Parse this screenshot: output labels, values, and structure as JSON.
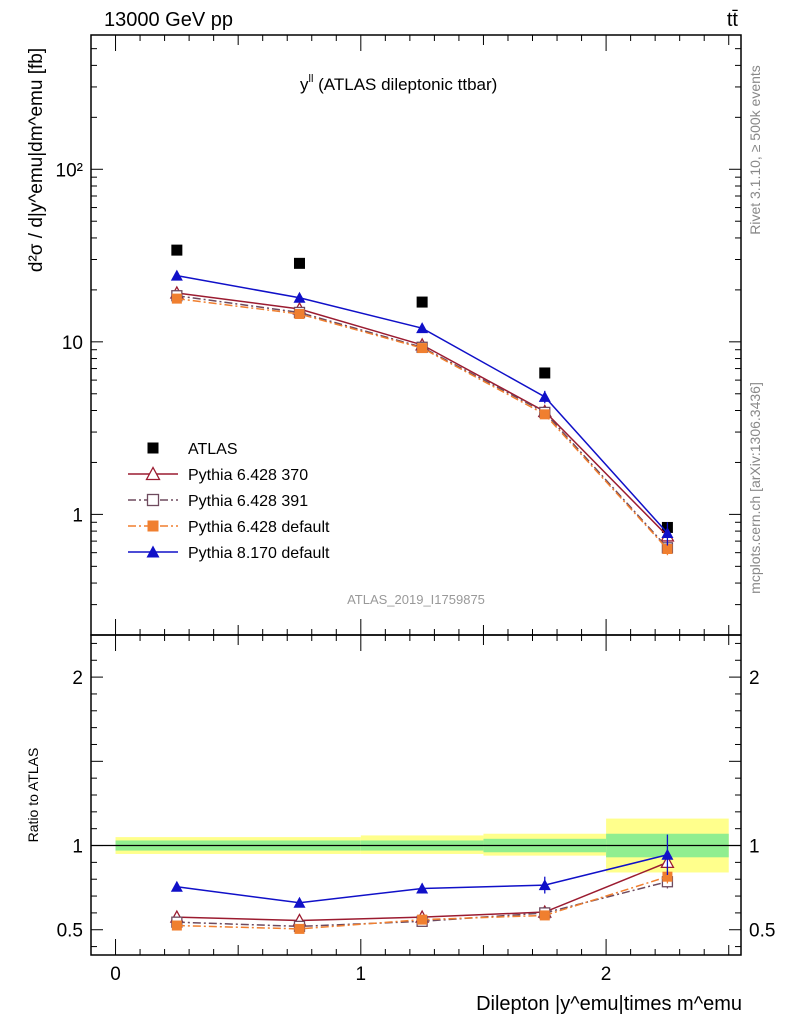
{
  "header": {
    "energy_label": "13000 GeV pp",
    "process_label": "tt̄"
  },
  "side_text": {
    "rivet": "Rivet 3.1.10, ≥ 500k events",
    "mcplots": "mcplots.cern.ch [arXiv:1306.3436]"
  },
  "plot_title": {
    "main": "y",
    "sup": "ll",
    "rest": " (ATLAS dileptonic ttbar)"
  },
  "analysis_id": "ATLAS_2019_I1759875",
  "axes": {
    "ylabel_main": "d²σ / d|y^emu|dm^emu [fb]",
    "ylabel_ratio": "Ratio to ATLAS",
    "xlabel": "Dilepton |y^emu|times m^emu"
  },
  "legend": [
    {
      "label": "ATLAS",
      "color": "#000000",
      "marker": "square-filled"
    },
    {
      "label": "Pythia 6.428 370",
      "color": "#9b1b30",
      "marker": "triangle-open"
    },
    {
      "label": "Pythia 6.428 391",
      "color": "#6e4a5e",
      "marker": "square-open"
    },
    {
      "label": "Pythia 6.428 default",
      "color": "#f07f2f",
      "marker": "square-filled"
    },
    {
      "label": "Pythia 8.170 default",
      "color": "#1010c8",
      "marker": "triangle-filled"
    }
  ],
  "chart_data": [
    {
      "type": "scatter",
      "panel": "main",
      "scale": "log",
      "xlim": [
        -0.1,
        2.55
      ],
      "ylim": [
        0.2,
        600
      ],
      "x_ticks": [
        0,
        1,
        2
      ],
      "y_ticks": [
        1,
        10,
        100
      ],
      "y_tick_labels": [
        "1",
        "10",
        "10²"
      ],
      "x": [
        0.25,
        0.75,
        1.25,
        1.75,
        2.25
      ],
      "series": [
        {
          "name": "ATLAS",
          "values": [
            34,
            28.5,
            17,
            6.6,
            0.84
          ],
          "errors": [
            0.8,
            0.7,
            0.4,
            0.2,
            0.06
          ]
        },
        {
          "name": "Pythia 6.428 370",
          "values": [
            19.2,
            15.5,
            9.6,
            3.95,
            0.75
          ],
          "errors": [
            0.3,
            0.3,
            0.2,
            0.1,
            0.05
          ]
        },
        {
          "name": "Pythia 6.428 391",
          "values": [
            18.5,
            14.8,
            9.3,
            3.9,
            0.64
          ],
          "errors": [
            0.3,
            0.3,
            0.2,
            0.1,
            0.05
          ]
        },
        {
          "name": "Pythia 6.428 default",
          "values": [
            17.8,
            14.5,
            9.2,
            3.8,
            0.63
          ],
          "errors": [
            0.3,
            0.3,
            0.2,
            0.1,
            0.05
          ]
        },
        {
          "name": "Pythia 8.170 default",
          "values": [
            24.2,
            18,
            12,
            4.8,
            0.78
          ],
          "errors": [
            0.4,
            0.4,
            0.3,
            0.4,
            0.12
          ]
        }
      ]
    },
    {
      "type": "scatter",
      "panel": "ratio",
      "scale": "linear",
      "xlim": [
        -0.1,
        2.55
      ],
      "ylim": [
        0.35,
        2.25
      ],
      "x_ticks": [
        0,
        1,
        2
      ],
      "y_ticks": [
        0.5,
        1,
        2
      ],
      "y_tick_labels": [
        "0.5",
        "1",
        "2"
      ],
      "x": [
        0.25,
        0.75,
        1.25,
        1.75,
        2.25
      ],
      "bands": [
        {
          "x0": 0.0,
          "x1": 1.0,
          "inner": [
            0.97,
            1.03
          ],
          "outer": [
            0.95,
            1.05
          ]
        },
        {
          "x0": 1.0,
          "x1": 1.5,
          "inner": [
            0.97,
            1.03
          ],
          "outer": [
            0.95,
            1.06
          ]
        },
        {
          "x0": 1.5,
          "x1": 2.0,
          "inner": [
            0.96,
            1.04
          ],
          "outer": [
            0.94,
            1.07
          ]
        },
        {
          "x0": 2.0,
          "x1": 2.5,
          "inner": [
            0.93,
            1.07
          ],
          "outer": [
            0.84,
            1.16
          ]
        }
      ],
      "series": [
        {
          "name": "Pythia 6.428 370",
          "values": [
            0.575,
            0.555,
            0.575,
            0.605,
            0.9
          ],
          "errors": [
            0.01,
            0.01,
            0.01,
            0.015,
            0.04
          ]
        },
        {
          "name": "Pythia 6.428 391",
          "values": [
            0.545,
            0.52,
            0.55,
            0.6,
            0.785
          ],
          "errors": [
            0.01,
            0.01,
            0.01,
            0.015,
            0.04
          ]
        },
        {
          "name": "Pythia 6.428 default",
          "values": [
            0.525,
            0.505,
            0.56,
            0.585,
            0.815
          ],
          "errors": [
            0.01,
            0.01,
            0.01,
            0.015,
            0.04
          ]
        },
        {
          "name": "Pythia 8.170 default",
          "values": [
            0.755,
            0.66,
            0.745,
            0.765,
            0.945
          ],
          "errors": [
            0.02,
            0.025,
            0.03,
            0.05,
            0.12
          ]
        }
      ]
    }
  ]
}
